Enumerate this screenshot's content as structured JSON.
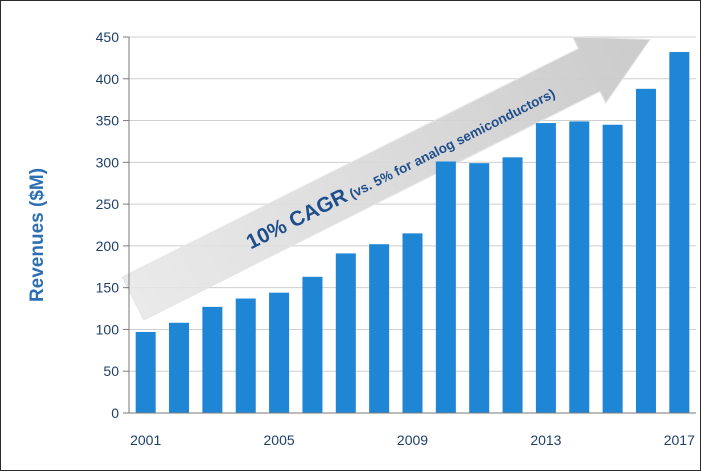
{
  "chart_data": {
    "type": "bar",
    "x": [
      2001,
      2002,
      2003,
      2004,
      2005,
      2006,
      2007,
      2008,
      2009,
      2010,
      2011,
      2012,
      2013,
      2014,
      2015,
      2016,
      2017
    ],
    "values": [
      97,
      108,
      127,
      137,
      144,
      163,
      191,
      202,
      215,
      301,
      299,
      306,
      347,
      349,
      345,
      388,
      432
    ],
    "x_tick_labels": [
      "2001",
      "2005",
      "2009",
      "2013",
      "2017"
    ],
    "y_ticks": [
      0,
      50,
      100,
      150,
      200,
      250,
      300,
      350,
      400,
      450
    ],
    "ylim": [
      0,
      450
    ],
    "ylabel": "Revenues ($M)",
    "xlabel": "",
    "title": "",
    "grid": "horizontal",
    "bar_color": "#1f86d6",
    "annotation": {
      "main": "10% CAGR",
      "sub": " (vs. 5% for analog semiconductors)",
      "arrow_color": "#d0d0d0"
    }
  }
}
